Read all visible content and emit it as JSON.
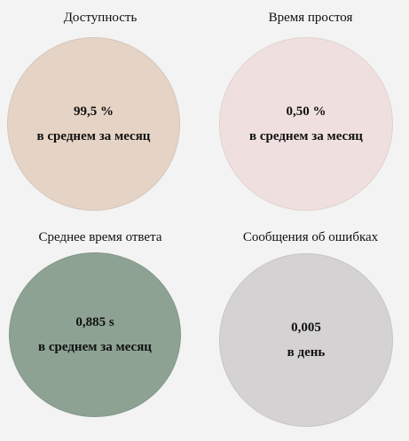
{
  "colors": {
    "background": "#f3f3f3",
    "availability": "#e5d3c5",
    "downtime": "#efe0df",
    "response_time": "#8da293",
    "error_messages": "#d4d2d3"
  },
  "metrics": [
    {
      "title": "Доступность",
      "value": "99,5 %",
      "caption": "в среднем за месяц",
      "color_key": "availability"
    },
    {
      "title": "Время простоя",
      "value": "0,50 %",
      "caption": "в среднем за месяц",
      "color_key": "downtime"
    },
    {
      "title": "Среднее время ответа",
      "value": "0,885 s",
      "caption": "в среднем за месяц",
      "color_key": "response_time"
    },
    {
      "title": "Сообщения об ошибках",
      "value": "0,005",
      "caption": "в день",
      "color_key": "error_messages"
    }
  ]
}
